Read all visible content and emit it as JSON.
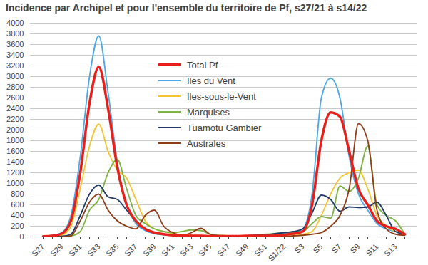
{
  "chart_data": {
    "type": "line",
    "title": "Incidence par Archipel et pour l'ensemble du territoire de Pf, s27/21 à s14/22",
    "categories": [
      "S27",
      null,
      "S29",
      null,
      "S31",
      null,
      "S33",
      null,
      "S35",
      null,
      "S37",
      null,
      "S39",
      null,
      "S41",
      null,
      "S43",
      null,
      "S45",
      null,
      "S47",
      null,
      "S49",
      null,
      "S51",
      null,
      "S1/22",
      null,
      "S3",
      null,
      "S5",
      null,
      "S7",
      null,
      "S9",
      null,
      "S11",
      null,
      "S13",
      null
    ],
    "series": [
      {
        "name": "Total Pf",
        "color": "#e8201c",
        "values": [
          10,
          20,
          60,
          300,
          1200,
          2500,
          3180,
          2400,
          1300,
          600,
          300,
          150,
          80,
          50,
          30,
          25,
          20,
          20,
          15,
          15,
          15,
          15,
          20,
          20,
          20,
          25,
          40,
          60,
          100,
          600,
          1800,
          2330,
          2250,
          1600,
          900,
          600,
          300,
          200,
          150,
          50
        ]
      },
      {
        "name": "Iles du Vent",
        "color": "#4ba7e6",
        "values": [
          10,
          30,
          80,
          400,
          1500,
          3000,
          3760,
          2700,
          1400,
          600,
          250,
          120,
          60,
          40,
          30,
          20,
          20,
          15,
          15,
          15,
          15,
          20,
          20,
          30,
          40,
          50,
          60,
          80,
          150,
          800,
          2600,
          2970,
          2600,
          1500,
          800,
          500,
          250,
          150,
          100,
          50
        ]
      },
      {
        "name": "Iles-sous-le-Vent",
        "color": "#f5c431",
        "values": [
          0,
          10,
          30,
          200,
          900,
          1700,
          2110,
          1600,
          1250,
          1100,
          700,
          300,
          150,
          100,
          60,
          40,
          30,
          20,
          15,
          10,
          10,
          10,
          10,
          15,
          20,
          20,
          30,
          40,
          50,
          100,
          400,
          800,
          1100,
          1200,
          1250,
          900,
          400,
          200,
          100,
          50
        ]
      },
      {
        "name": "Marquises",
        "color": "#7cb342",
        "values": [
          0,
          0,
          10,
          20,
          100,
          500,
          700,
          1200,
          1450,
          900,
          400,
          250,
          150,
          100,
          80,
          100,
          130,
          120,
          50,
          30,
          20,
          20,
          20,
          30,
          50,
          60,
          80,
          90,
          100,
          250,
          380,
          350,
          950,
          850,
          1100,
          1700,
          600,
          400,
          300,
          50
        ]
      },
      {
        "name": "Tuamotu Gambier",
        "color": "#1f3a68",
        "values": [
          0,
          0,
          10,
          50,
          400,
          800,
          970,
          750,
          700,
          500,
          300,
          150,
          80,
          50,
          40,
          30,
          20,
          20,
          15,
          15,
          15,
          15,
          20,
          30,
          40,
          60,
          80,
          100,
          150,
          450,
          780,
          700,
          480,
          560,
          550,
          560,
          650,
          400,
          100,
          50
        ]
      },
      {
        "name": "Australes",
        "color": "#8e3b17",
        "values": [
          0,
          0,
          0,
          20,
          300,
          650,
          800,
          500,
          300,
          200,
          150,
          400,
          500,
          200,
          80,
          30,
          80,
          160,
          50,
          20,
          10,
          10,
          10,
          10,
          10,
          10,
          10,
          20,
          30,
          50,
          80,
          200,
          400,
          900,
          2120,
          1800,
          500,
          150,
          50,
          30
        ]
      }
    ],
    "ylim": [
      0,
      4000
    ],
    "yticks": [
      0,
      200,
      400,
      600,
      800,
      1000,
      1200,
      1400,
      1600,
      1800,
      2000,
      2200,
      2400,
      2600,
      2800,
      3000,
      3200,
      3400,
      3600,
      3800,
      4000
    ],
    "grid": true
  }
}
